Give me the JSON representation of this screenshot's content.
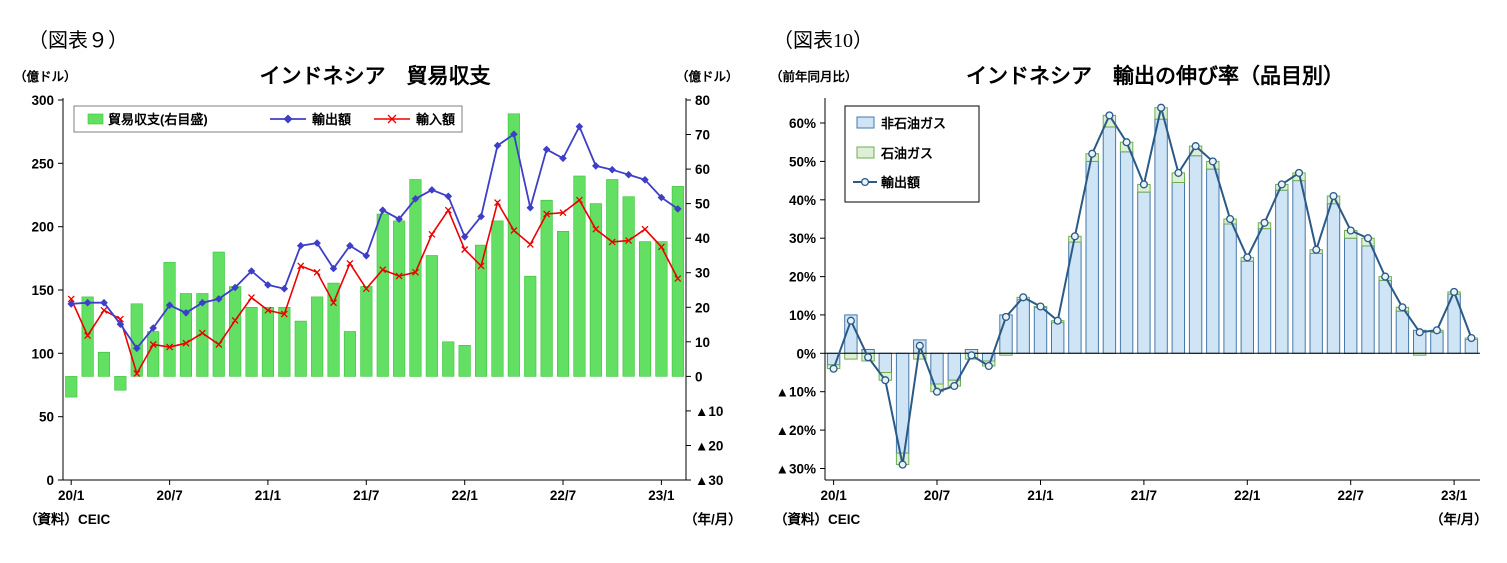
{
  "figure9": {
    "caption": "（図表９）",
    "title": "インドネシア　貿易収支",
    "left_axis_unit": "（億ドル）",
    "right_axis_unit": "（億ドル）",
    "source": "（資料）CEIC",
    "xaxis_unit": "（年/月）"
  },
  "figure10": {
    "caption": "（図表10）",
    "title": "インドネシア　輸出の伸び率（品目別）",
    "axis_unit": "（前年同月比）",
    "source": "（資料）CEIC",
    "xaxis_unit": "（年/月）"
  },
  "chart_data": [
    {
      "type": "bar+line",
      "title": "インドネシア　貿易収支",
      "x": [
        "20/1",
        "20/2",
        "20/3",
        "20/4",
        "20/5",
        "20/6",
        "20/7",
        "20/8",
        "20/9",
        "20/10",
        "20/11",
        "20/12",
        "21/1",
        "21/2",
        "21/3",
        "21/4",
        "21/5",
        "21/6",
        "21/7",
        "21/8",
        "21/9",
        "21/10",
        "21/11",
        "21/12",
        "22/1",
        "22/2",
        "22/3",
        "22/4",
        "22/5",
        "22/6",
        "22/7",
        "22/8",
        "22/9",
        "22/10",
        "22/11",
        "22/12",
        "23/1",
        "23/2"
      ],
      "x_tick_indices": [
        0,
        6,
        12,
        18,
        24,
        30,
        36
      ],
      "left_axis": {
        "min": 0,
        "max": 300,
        "ticks": [
          300,
          250,
          200,
          150,
          100,
          50,
          0
        ],
        "unit": "億ドル"
      },
      "right_axis": {
        "min": -30,
        "max": 80,
        "ticks": [
          80,
          70,
          60,
          50,
          40,
          30,
          20,
          10,
          0,
          -10,
          -20,
          -30
        ],
        "unit": "億ドル"
      },
      "legend_position": "top-inside",
      "grid": false,
      "series": [
        {
          "name": "貿易収支(右目盛)",
          "type": "bar",
          "axis": "right",
          "color": "#63e063",
          "border": "#38c138",
          "values": [
            -6,
            23,
            7,
            -4,
            21,
            13,
            33,
            24,
            24,
            36,
            26,
            20,
            20,
            20,
            16,
            23,
            27,
            13,
            26,
            47,
            45,
            57,
            35,
            10,
            9,
            38,
            45,
            76,
            29,
            51,
            42,
            58,
            50,
            57,
            52,
            39,
            39,
            55
          ]
        },
        {
          "name": "輸出額",
          "type": "line",
          "marker": "diamond",
          "axis": "left",
          "color": "#3e3ec9",
          "values": [
            139,
            140,
            140,
            123,
            104,
            120,
            138,
            132,
            140,
            143,
            152,
            165,
            154,
            151,
            185,
            187,
            167,
            185,
            177,
            213,
            206,
            222,
            229,
            224,
            192,
            208,
            264,
            273,
            215,
            261,
            254,
            279,
            248,
            245,
            241,
            237,
            223,
            214
          ]
        },
        {
          "name": "輸入額",
          "type": "line",
          "marker": "x",
          "axis": "left",
          "color": "#ee0000",
          "values": [
            143,
            114,
            134,
            127,
            84,
            107,
            105,
            108,
            116,
            107,
            126,
            144,
            134,
            131,
            169,
            164,
            140,
            171,
            151,
            166,
            161,
            164,
            194,
            213,
            182,
            169,
            219,
            197,
            186,
            210,
            211,
            221,
            198,
            188,
            189,
            198,
            184,
            159
          ]
        }
      ]
    },
    {
      "type": "stacked-bar+line",
      "title": "インドネシア　輸出の伸び率（品目別）",
      "x": [
        "20/1",
        "20/2",
        "20/3",
        "20/4",
        "20/5",
        "20/6",
        "20/7",
        "20/8",
        "20/9",
        "20/10",
        "20/11",
        "20/12",
        "21/1",
        "21/2",
        "21/3",
        "21/4",
        "21/5",
        "21/6",
        "21/7",
        "21/8",
        "21/9",
        "21/10",
        "21/11",
        "21/12",
        "22/1",
        "22/2",
        "22/3",
        "22/4",
        "22/5",
        "22/6",
        "22/7",
        "22/8",
        "22/9",
        "22/10",
        "22/11",
        "22/12",
        "23/1",
        "23/2"
      ],
      "x_tick_indices": [
        0,
        6,
        12,
        18,
        24,
        30,
        36
      ],
      "y_axis": {
        "min": -33,
        "max": 66,
        "ticks": [
          60,
          50,
          40,
          30,
          20,
          10,
          0,
          -10,
          -20,
          -30
        ],
        "unit": "%",
        "label": "前年同月比"
      },
      "legend_position": "top-left-inside",
      "grid": false,
      "series": [
        {
          "name": "非石油ガス",
          "type": "bar",
          "color": "#cfe4f4",
          "border": "#4579ab",
          "values": [
            -3,
            10,
            1,
            -5,
            -26,
            3.5,
            -8,
            -7,
            1,
            -2,
            10,
            14,
            12,
            8,
            29,
            50,
            59,
            52.5,
            42,
            61,
            44.5,
            51.5,
            48,
            33.7,
            24,
            32.5,
            42.5,
            45,
            26,
            39,
            30,
            28,
            19,
            11,
            6,
            5.5,
            15.4,
            3.6
          ]
        },
        {
          "name": "石油ガス",
          "type": "bar",
          "color": "#ddefd5",
          "border": "#6fad53",
          "values": [
            -1,
            -1.5,
            -2,
            -2,
            -3,
            -1.5,
            -2,
            -1.5,
            -1.5,
            -1.3,
            -0.5,
            0.6,
            0.2,
            0.5,
            1.5,
            2,
            3,
            2.5,
            2,
            3,
            2.5,
            2.5,
            2,
            1.3,
            1,
            1.5,
            1.5,
            2,
            1,
            2,
            2,
            2,
            1,
            1,
            -0.5,
            0.5,
            0.6,
            0.4
          ]
        },
        {
          "name": "輸出額",
          "type": "line",
          "marker": "circle",
          "color": "#2a5a85",
          "values": [
            -4,
            8.5,
            -1,
            -7,
            -29,
            2,
            -10,
            -8.5,
            -0.5,
            -3.3,
            9.5,
            14.6,
            12.2,
            8.5,
            30.5,
            52,
            62,
            55,
            44,
            64,
            47,
            54,
            50,
            35,
            25,
            34,
            44,
            47,
            27,
            41,
            32,
            30,
            20,
            12,
            5.5,
            6,
            16,
            4
          ]
        }
      ]
    }
  ]
}
